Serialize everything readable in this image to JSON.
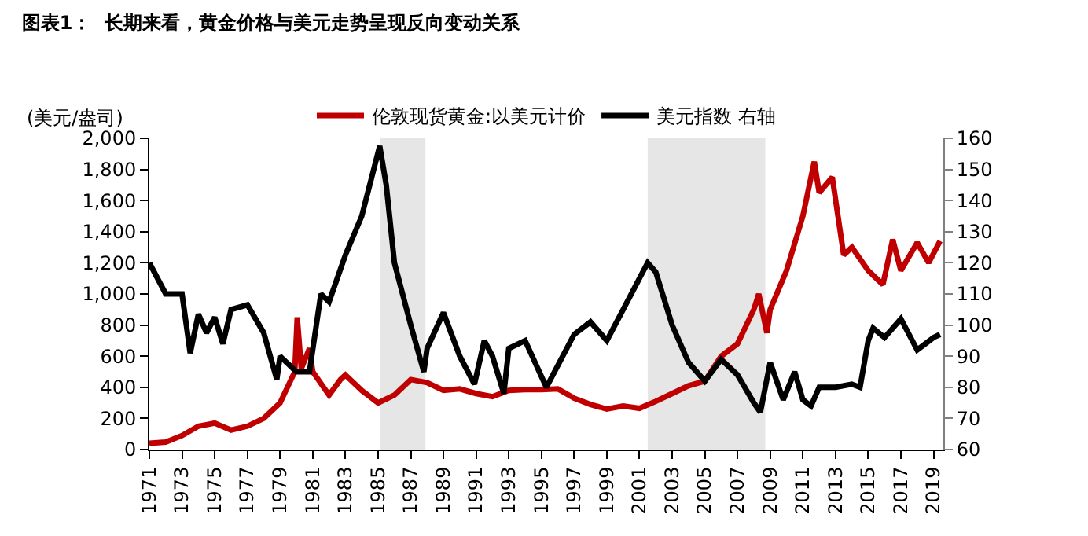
{
  "chart_data": {
    "type": "line",
    "title": "图表1：  长期来看，黄金价格与美元走势呈现反向变动关系",
    "ylabel": "(美元/盎司)",
    "xlim": [
      1971,
      2019.6
    ],
    "xticks": [
      1971,
      1973,
      1975,
      1977,
      1979,
      1981,
      1983,
      1985,
      1987,
      1989,
      1991,
      1993,
      1995,
      1997,
      1999,
      2001,
      2003,
      2005,
      2007,
      2009,
      2011,
      2013,
      2015,
      2017,
      2019
    ],
    "ylim": [
      0,
      2000
    ],
    "yticks": [
      0,
      200,
      400,
      600,
      800,
      {
        "value": 1000,
        "label": "1,000"
      },
      {
        "value": 1200,
        "label": "1,200"
      },
      {
        "value": 1400,
        "label": "1,400"
      },
      {
        "value": 1600,
        "label": "1,600"
      },
      {
        "value": 1800,
        "label": "1,800"
      },
      {
        "value": 2000,
        "label": "2,000"
      }
    ],
    "y2lim": [
      60,
      160
    ],
    "y2ticks": [
      60,
      70,
      80,
      90,
      100,
      110,
      120,
      130,
      140,
      150,
      160
    ],
    "legend": "top",
    "grid": false,
    "line_style": "solid",
    "marker": "none",
    "bands": [
      {
        "axis": "x",
        "from": 1985.1,
        "to": 1987.9,
        "color": "#e6e6e6"
      },
      {
        "axis": "x",
        "from": 2001.5,
        "to": 2008.7,
        "color": "#e6e6e6"
      }
    ],
    "series": [
      {
        "name": "伦敦现货黄金:以美元计价",
        "color": "#c00000",
        "x": [
          1971,
          1972,
          1973,
          1974,
          1975,
          1976,
          1977,
          1978,
          1979,
          1979.9,
          1980.05,
          1980.3,
          1980.8,
          1981,
          1982,
          1982.7,
          1983,
          1984,
          1985,
          1986,
          1987,
          1988,
          1989,
          1990,
          1991,
          1992,
          1993,
          1994,
          1995,
          1996,
          1997,
          1998,
          1999,
          2000,
          2001,
          2002,
          2003,
          2004,
          2005,
          2006,
          2007,
          2008,
          2008.3,
          2008.8,
          2009,
          2010,
          2011,
          2011.7,
          2012,
          2012.8,
          2013.5,
          2014,
          2015,
          2015.9,
          2016.5,
          2017,
          2018,
          2018.7,
          2019.2,
          2019.4
        ],
        "values": [
          40,
          48,
          90,
          150,
          170,
          125,
          150,
          200,
          300,
          500,
          850,
          520,
          650,
          500,
          350,
          450,
          480,
          380,
          300,
          350,
          450,
          430,
          380,
          390,
          360,
          340,
          380,
          385,
          385,
          390,
          330,
          290,
          260,
          280,
          265,
          310,
          360,
          410,
          440,
          600,
          680,
          900,
          1000,
          750,
          900,
          1150,
          1500,
          1850,
          1650,
          1750,
          1250,
          1300,
          1150,
          1060,
          1350,
          1150,
          1330,
          1200,
          1300,
          1340
        ]
      },
      {
        "name": "美元指数 右轴",
        "color": "#000000",
        "axis": "y2",
        "x": [
          1971,
          1972,
          1973,
          1973.5,
          1974,
          1974.5,
          1975,
          1975.5,
          1976,
          1977,
          1978,
          1978.8,
          1979,
          1980,
          1980.8,
          1981.5,
          1982,
          1983,
          1984,
          1985.1,
          1985.5,
          1986,
          1987,
          1987.8,
          1988,
          1989,
          1990,
          1990.9,
          1991.5,
          1992,
          1992.7,
          1993,
          1994,
          1995.3,
          1996,
          1997,
          1998,
          1999,
          2000,
          2001,
          2001.5,
          2002,
          2003,
          2004,
          2005,
          2006,
          2007,
          2008,
          2008.4,
          2009,
          2009.8,
          2010.5,
          2011,
          2011.5,
          2012,
          2013,
          2014,
          2014.5,
          2015,
          2015.3,
          2016,
          2017,
          2018,
          2018.5,
          2019,
          2019.4
        ],
        "values": [
          120,
          110,
          110,
          91,
          103.5,
          97.5,
          102.5,
          94,
          105,
          106.5,
          97.5,
          82.5,
          90,
          85,
          85,
          110,
          107.5,
          122.5,
          135,
          157.5,
          145,
          120,
          100,
          85,
          92.5,
          104,
          90,
          81,
          95,
          90,
          78,
          92.5,
          95,
          80,
          87,
          97,
          101,
          95,
          105,
          115,
          120,
          117,
          100,
          88,
          82,
          89,
          84,
          75,
          72,
          88,
          76,
          85,
          76,
          74,
          80,
          80,
          81,
          80,
          95,
          99,
          96,
          102,
          92,
          94,
          96,
          97
        ]
      }
    ]
  }
}
